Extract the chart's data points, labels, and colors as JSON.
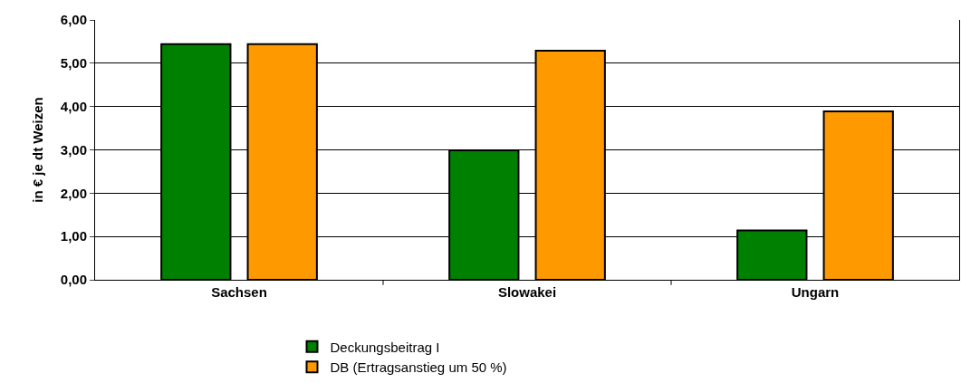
{
  "chart_data": {
    "type": "bar",
    "ylabel": "in € je dt Weizen",
    "categories": [
      "Sachsen",
      "Slowakei",
      "Ungarn"
    ],
    "series": [
      {
        "name": "Deckungsbeitrag I",
        "color": "#008000",
        "values": [
          5.44,
          2.99,
          1.14
        ]
      },
      {
        "name": "DB (Ertragsanstieg um 50 %)",
        "color": "#ff9900",
        "values": [
          5.44,
          5.29,
          3.89
        ]
      }
    ],
    "ylim": [
      0,
      6
    ],
    "yticks": [
      {
        "value": 0,
        "label": "0,00"
      },
      {
        "value": 1,
        "label": "1,00"
      },
      {
        "value": 2,
        "label": "2,00"
      },
      {
        "value": 3,
        "label": "3,00"
      },
      {
        "value": 4,
        "label": "4,00"
      },
      {
        "value": 5,
        "label": "5,00"
      },
      {
        "value": 6,
        "label": "6,00"
      }
    ],
    "grid": "y",
    "legend": "bottom"
  }
}
